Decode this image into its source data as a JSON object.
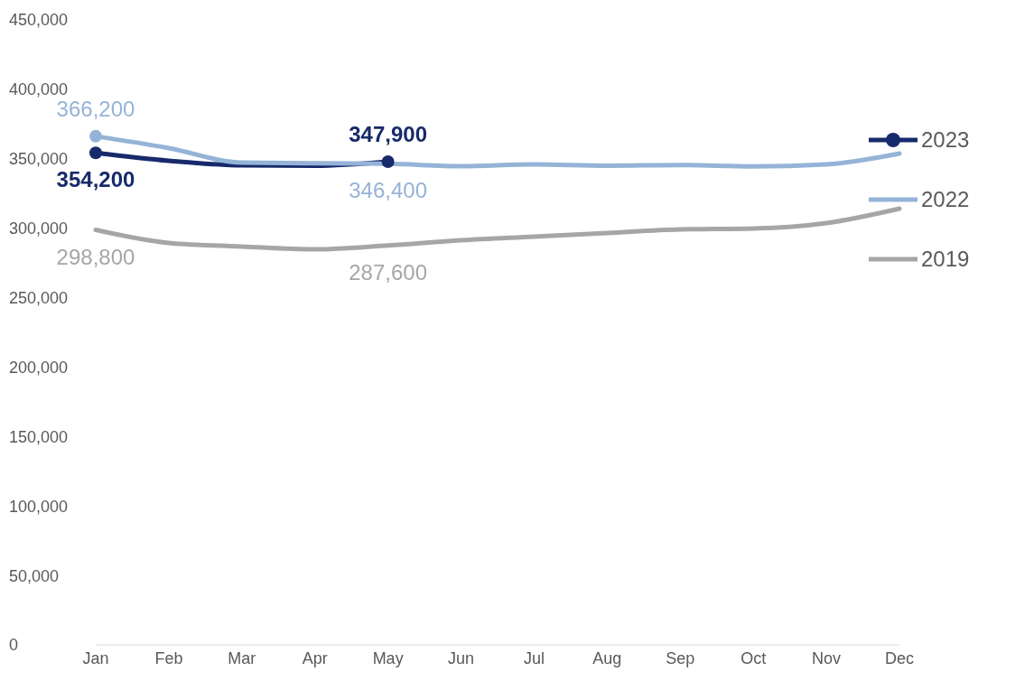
{
  "chart_data": {
    "type": "line",
    "categories": [
      "Jan",
      "Feb",
      "Mar",
      "Apr",
      "May",
      "Jun",
      "Jul",
      "Aug",
      "Sep",
      "Oct",
      "Nov",
      "Dec"
    ],
    "ylim": [
      0,
      450000
    ],
    "yticks": [
      {
        "value": 0,
        "label": "0"
      },
      {
        "value": 50000,
        "label": "50,000"
      },
      {
        "value": 100000,
        "label": "100,000"
      },
      {
        "value": 150000,
        "label": "150,000"
      },
      {
        "value": 200000,
        "label": "200,000"
      },
      {
        "value": 250000,
        "label": "250,000"
      },
      {
        "value": 300000,
        "label": "300,000"
      },
      {
        "value": 350000,
        "label": "350,000"
      },
      {
        "value": 400000,
        "label": "400,000"
      },
      {
        "value": 450000,
        "label": "450,000"
      }
    ],
    "grid": false,
    "legend": "right",
    "series": [
      {
        "name": "2023",
        "color": "#172a6b",
        "values": [
          354200,
          348500,
          345300,
          345000,
          347900,
          null,
          null,
          null,
          null,
          null,
          null,
          null
        ],
        "value_labels": [
          "354,200",
          null,
          null,
          null,
          "347,900",
          null,
          null,
          null,
          null,
          null,
          null,
          null
        ]
      },
      {
        "name": "2022",
        "color": "#95b3d7",
        "values": [
          366200,
          357700,
          347200,
          346800,
          346400,
          344600,
          346000,
          345000,
          345500,
          344500,
          346000,
          353800
        ],
        "value_labels": [
          "366,200",
          null,
          null,
          null,
          "346,400",
          null,
          null,
          null,
          null,
          null,
          null,
          null
        ]
      },
      {
        "name": "2019",
        "color": "#a6a6a6",
        "values": [
          298800,
          289400,
          286800,
          284800,
          287600,
          291300,
          293900,
          296500,
          299100,
          299800,
          303700,
          314100
        ],
        "value_labels": [
          "298,800",
          null,
          null,
          null,
          "287,600",
          null,
          null,
          null,
          null,
          null,
          null,
          null
        ]
      }
    ]
  }
}
